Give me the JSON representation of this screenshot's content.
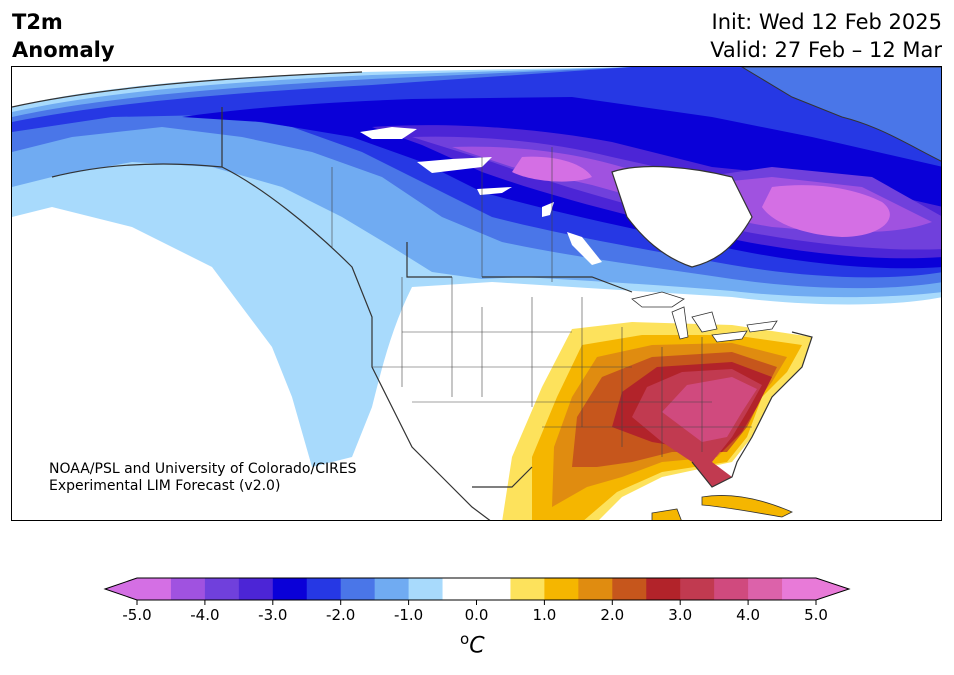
{
  "title": {
    "left_lines": [
      "T2m",
      "Anomaly"
    ],
    "init": "Init: Wed 12 Feb 2025",
    "valid": "Valid: 27 Feb – 12 Mar"
  },
  "credit": {
    "line1": "NOAA/PSL and University of Colorado/CIRES",
    "line2": "Experimental LIM Forecast (v2.0)"
  },
  "colorbar": {
    "ticks": [
      "-5.0",
      "-4.0",
      "-3.0",
      "-2.0",
      "-1.0",
      "0.0",
      "1.0",
      "2.0",
      "3.0",
      "4.0",
      "5.0"
    ],
    "unit_sup": "o",
    "unit": "C",
    "colors": [
      "#d46fe4",
      "#a052e0",
      "#7040dc",
      "#4c25d6",
      "#0a00d8",
      "#2638e4",
      "#4a76e8",
      "#70abf2",
      "#a8dafc",
      "#ffffff",
      "#ffffff",
      "#fde25c",
      "#f5b600",
      "#e08c10",
      "#c6561c",
      "#b2232a",
      "#c13a50",
      "#d04a7e",
      "#dc62aa",
      "#e87ad8"
    ],
    "extend_low": "#d46fe4",
    "extend_high": "#e87ad8"
  }
}
